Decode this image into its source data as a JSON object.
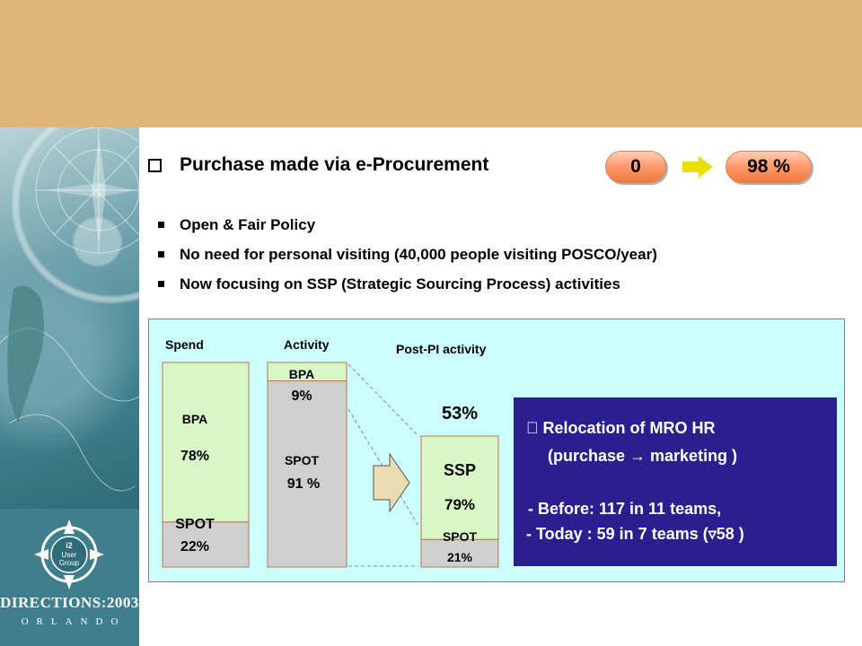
{
  "logo": {
    "title": "DIRECTIONS:2003",
    "subtitle": "ORLANDO",
    "emblem_text_1": "i2",
    "emblem_text_2": "User",
    "emblem_text_3": "Group"
  },
  "heading": {
    "bullet_icon": "checkbox-icon",
    "text": "Purchase made via e-Procurement"
  },
  "kpi": {
    "before": "0",
    "after": "98 %",
    "arrow_icon": "right-arrow-icon"
  },
  "bullets": [
    "Open & Fair Policy",
    "No need for personal visiting (40,000 people visiting POSCO/year)",
    "Now focusing on SSP (Strategic Sourcing Process) activities"
  ],
  "chart_data": {
    "type": "bar",
    "title": "",
    "stacked": true,
    "categories": [
      "Spend",
      "Activity",
      "Post-PI activity"
    ],
    "series": [
      {
        "name": "BPA",
        "values": [
          78,
          9,
          null
        ]
      },
      {
        "name": "SPOT",
        "values": [
          22,
          91,
          21
        ]
      },
      {
        "name": "SSP",
        "values": [
          null,
          null,
          79
        ]
      }
    ],
    "labels": {
      "spend_bpa_name": "BPA",
      "spend_bpa_value": "78%",
      "spend_spot": "SPOT",
      "spend_spot_value": "22%",
      "activity_bpa": "BPA",
      "activity_bpa_value": "9%",
      "activity_spot": "SPOT",
      "activity_spot_value": "91 %",
      "post_ssp": "SSP",
      "post_ssp_value": "79%",
      "post_spot": "SPOT",
      "post_spot_value": "21%",
      "post_total": "53%"
    },
    "colors": {
      "bpa": "#d9f7c6",
      "spot": "#cfcfcf",
      "ssp": "#d9f7c6",
      "block_arrow": "#e8dcb0"
    }
  },
  "note_box": {
    "line1": " Relocation of MRO HR",
    "line2": "(purchase → marketing )",
    "line3": "- Before: 117 in 11 teams,",
    "line4": "- Today : 59 in 7 teams (▿58 )",
    "background": "#2b1f8f"
  }
}
